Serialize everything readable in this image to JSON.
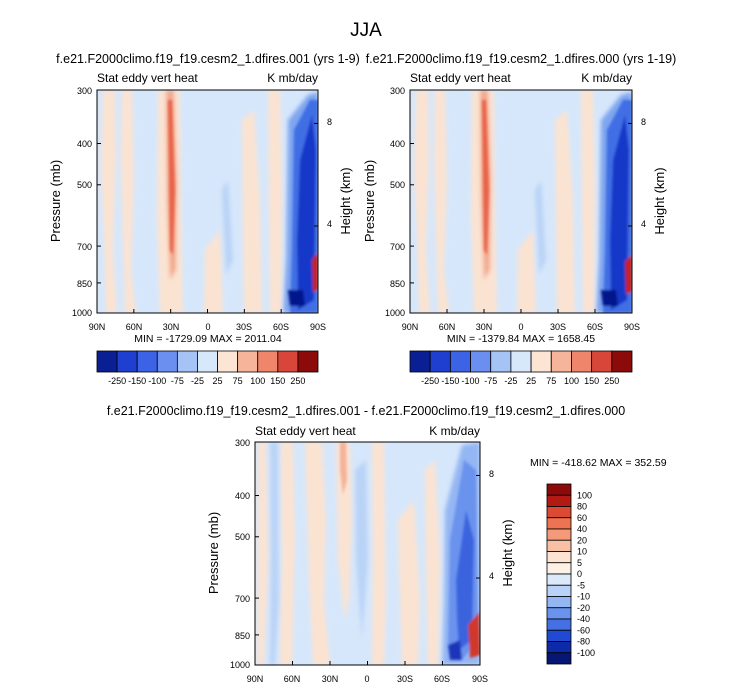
{
  "page_title": "JJA",
  "chart_data": [
    {
      "type": "heatmap",
      "title": "f.e21.F2000climo.f19_f19.cesm2_1.dfires.001 (yrs 1-9)",
      "left_subtitle": "Stat eddy vert heat",
      "right_subtitle": "K mb/day",
      "ylabel": "Pressure (mb)",
      "ylabel_right": "Height (km)",
      "x_ticks": [
        "90N",
        "60N",
        "30N",
        "0",
        "30S",
        "60S",
        "90S"
      ],
      "y_ticks": [
        "300",
        "400",
        "500",
        "700",
        "850",
        "1000"
      ],
      "y_right_ticks": [
        "8",
        "4"
      ],
      "stats": "MIN = -1729.09  MAX = 2011.04",
      "colorbar_labels": [
        "-250",
        "-150",
        "-100",
        "-75",
        "-25",
        "25",
        "75",
        "100",
        "150",
        "250"
      ]
    },
    {
      "type": "heatmap",
      "title": "f.e21.F2000climo.f19_f19.cesm2_1.dfires.000 (yrs 1-19)",
      "left_subtitle": "Stat eddy vert heat",
      "right_subtitle": "K mb/day",
      "ylabel": "Pressure (mb)",
      "ylabel_right": "Height (km)",
      "x_ticks": [
        "90N",
        "60N",
        "30N",
        "0",
        "30S",
        "60S",
        "90S"
      ],
      "y_ticks": [
        "300",
        "400",
        "500",
        "700",
        "850",
        "1000"
      ],
      "y_right_ticks": [
        "8",
        "4"
      ],
      "stats": "MIN = -1379.84  MAX = 1658.45",
      "colorbar_labels": [
        "-250",
        "-150",
        "-100",
        "-75",
        "-25",
        "25",
        "75",
        "100",
        "150",
        "250"
      ]
    },
    {
      "type": "heatmap",
      "title": "f.e21.F2000climo.f19_f19.cesm2_1.dfires.001 - f.e21.F2000climo.f19_f19.cesm2_1.dfires.000",
      "left_subtitle": "Stat eddy vert heat",
      "right_subtitle": "K mb/day",
      "ylabel": "Pressure (mb)",
      "ylabel_right": "Height (km)",
      "x_ticks": [
        "90N",
        "60N",
        "30N",
        "0",
        "30S",
        "60S",
        "90S"
      ],
      "y_ticks": [
        "300",
        "400",
        "500",
        "700",
        "850",
        "1000"
      ],
      "y_right_ticks": [
        "8",
        "4"
      ],
      "stats": "MIN = -418.62  MAX = 352.59",
      "colorbar_labels": [
        "100",
        "80",
        "60",
        "40",
        "20",
        "10",
        "5",
        "0",
        "-5",
        "-10",
        "-20",
        "-40",
        "-60",
        "-80",
        "-100"
      ]
    }
  ],
  "colors": {
    "background": "#d6e7fb",
    "warm_light": "#fbe3d2",
    "warm_mid": "#f2a78c",
    "warm_strong": "#e8644a",
    "cool_light": "#b9d3f7",
    "cool_mid": "#7ea5ef",
    "cool_strong": "#3f6ee4",
    "cool_deep": "#1637c8",
    "cool_deepest": "#06138a",
    "red_deep": "#a01010",
    "cb_top": [
      "#0b1f95",
      "#1f3fd0",
      "#3c63e6",
      "#6b8ff0",
      "#a6c3f6",
      "#d8e8fb",
      "#fde5d3",
      "#f6b59a",
      "#ef856a",
      "#d8463a",
      "#8c0a0a"
    ],
    "cb_bottom": [
      "#8c0a0a",
      "#b31a14",
      "#dd4a34",
      "#ee7352",
      "#f49a78",
      "#f8c1a6",
      "#fde3d2",
      "#fdf1e6",
      "#dce9fb",
      "#b9d2f7",
      "#94b6f3",
      "#6a93ee",
      "#4470e4",
      "#2149d4",
      "#0d2aa8",
      "#061673"
    ]
  }
}
